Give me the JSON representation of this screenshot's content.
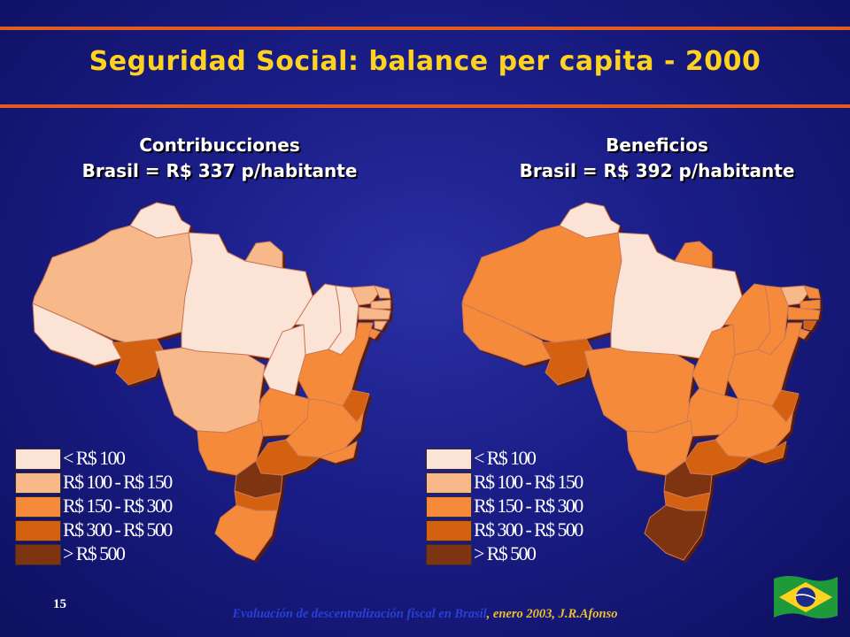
{
  "title": "Seguridad Social: balance per capita - 2000",
  "maps": [
    {
      "heading": "Contribucciones",
      "subheading": "Brasil = R$ 337 p/habitante",
      "region_categories": [
        "<100",
        "100-150",
        "300-500",
        "<100",
        "<100",
        "100-150",
        "100-150",
        "<100",
        "<100",
        "<100",
        "100-150",
        "100-150",
        "100-150",
        "100-150",
        "100-150",
        "150-300",
        "150-300",
        "300-500",
        "150-300",
        "150-300",
        "150-300",
        "300-500",
        "150-300",
        "300-500",
        ">500",
        "300-500",
        "150-300"
      ]
    },
    {
      "heading": "Beneficios",
      "subheading": "Brasil = R$ 392 p/habitante",
      "region_categories": [
        "150-300",
        "150-300",
        "300-500",
        "<100",
        "<100",
        "150-300",
        "150-300",
        "150-300",
        "150-300",
        "150-300",
        "100-150",
        "150-300",
        "150-300",
        "150-300",
        "300-500",
        "150-300",
        "150-300",
        "300-500",
        "150-300",
        "150-300",
        "150-300",
        "300-500",
        "300-500",
        "300-500",
        ">500",
        "300-500",
        ">500"
      ]
    }
  ],
  "legend": [
    {
      "key": "<100",
      "label": "< R$ 100",
      "color": "#fbe3d6"
    },
    {
      "key": "100-150",
      "label": "R$ 100 - R$ 150",
      "color": "#f8b98a"
    },
    {
      "key": "150-300",
      "label": "R$ 150 - R$ 300",
      "color": "#f58a3a"
    },
    {
      "key": "300-500",
      "label": "R$ 300 - R$ 500",
      "color": "#d4610f"
    },
    {
      "key": ">500",
      "label": "> R$ 500",
      "color": "#7e3410"
    }
  ],
  "slide_number": "15",
  "footer": {
    "part1": "Evaluación de descentralización fiscal en Brasil",
    "part2": ", enero 2003, J.R.Afonso"
  },
  "flag_icon": "brazil-flag-icon"
}
